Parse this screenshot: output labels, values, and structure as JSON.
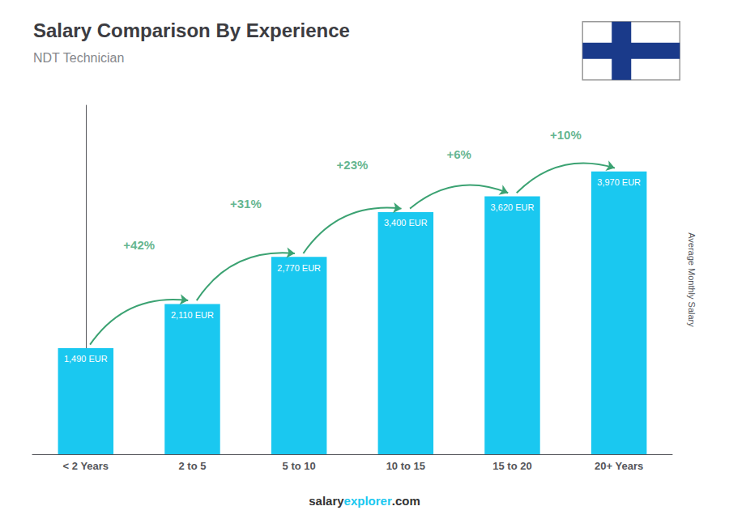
{
  "chart_data": {
    "type": "bar",
    "title": "Salary Comparison By Experience",
    "subtitle": "NDT Technician",
    "ylabel": "Average Monthly Salary",
    "categories": [
      "< 2 Years",
      "2 to 5",
      "5 to 10",
      "10 to 15",
      "15 to 20",
      "20+ Years"
    ],
    "values": [
      1490,
      2110,
      2770,
      3400,
      3620,
      3970
    ],
    "value_labels": [
      "1,490 EUR",
      "2,110 EUR",
      "2,770 EUR",
      "3,400 EUR",
      "3,620 EUR",
      "3,970 EUR"
    ],
    "data_labels": true,
    "annotations": [
      "+42%",
      "+31%",
      "+23%",
      "+6%",
      "+10%"
    ],
    "footer": [
      "salary",
      "explorer",
      ".com"
    ],
    "color": "#1ac8f0",
    "ylim": [
      0,
      4900
    ],
    "tick_labels": "x",
    "grid": false
  }
}
